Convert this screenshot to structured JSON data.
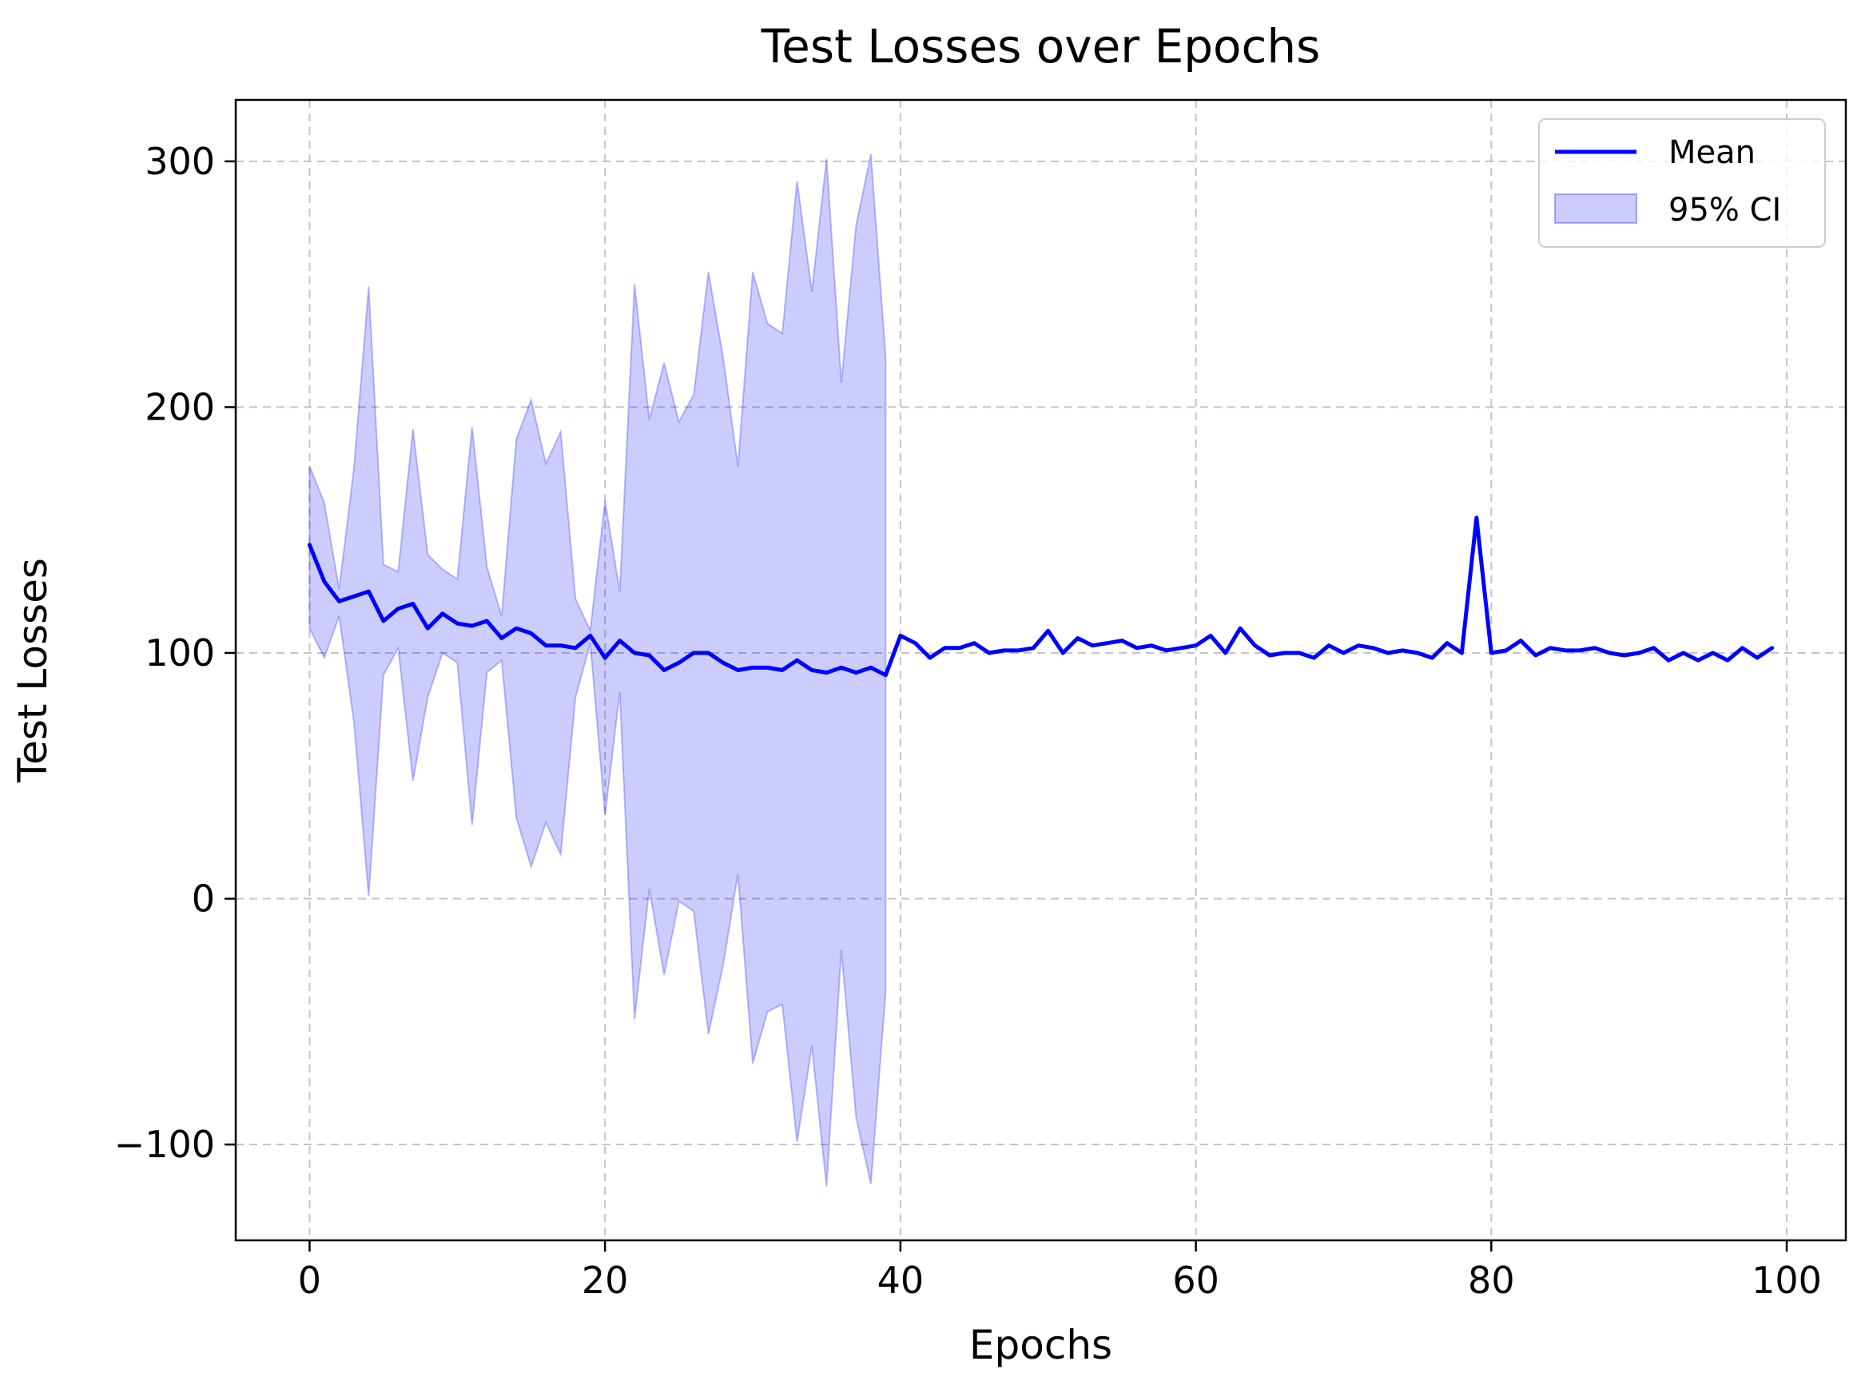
{
  "chart_data": {
    "type": "line",
    "title": "Test Losses over Epochs",
    "xlabel": "Epochs",
    "ylabel": "Test Losses",
    "xlim": [
      -5,
      104
    ],
    "ylim": [
      -139,
      325
    ],
    "xticks": [
      0,
      20,
      40,
      60,
      80,
      100
    ],
    "yticks": [
      -100,
      0,
      100,
      200,
      300
    ],
    "xtick_labels": [
      "0",
      "20",
      "40",
      "60",
      "80",
      "100"
    ],
    "ytick_labels": [
      "−100",
      "0",
      "100",
      "200",
      "300"
    ],
    "grid": true,
    "legend_position": "top-right",
    "series": [
      {
        "name": "Mean",
        "color": "#0000ff",
        "x": [
          0,
          1,
          2,
          3,
          4,
          5,
          6,
          7,
          8,
          9,
          10,
          11,
          12,
          13,
          14,
          15,
          16,
          17,
          18,
          19,
          20,
          21,
          22,
          23,
          24,
          25,
          26,
          27,
          28,
          29,
          30,
          31,
          32,
          33,
          34,
          35,
          36,
          37,
          38,
          39,
          40,
          41,
          42,
          43,
          44,
          45,
          46,
          47,
          48,
          49,
          50,
          51,
          52,
          53,
          54,
          55,
          56,
          57,
          58,
          59,
          60,
          61,
          62,
          63,
          64,
          65,
          66,
          67,
          68,
          69,
          70,
          71,
          72,
          73,
          74,
          75,
          76,
          77,
          78,
          79,
          80,
          81,
          82,
          83,
          84,
          85,
          86,
          87,
          88,
          89,
          90,
          91,
          92,
          93,
          94,
          95,
          96,
          97,
          98,
          99
        ],
        "values": [
          144,
          129,
          121,
          123,
          125,
          113,
          118,
          120,
          110,
          116,
          112,
          111,
          113,
          106,
          110,
          108,
          103,
          103,
          102,
          107,
          98,
          105,
          100,
          99,
          93,
          96,
          100,
          100,
          96,
          93,
          94,
          94,
          93,
          97,
          93,
          92,
          94,
          92,
          94,
          91,
          107,
          104,
          98,
          102,
          102,
          104,
          100,
          101,
          101,
          102,
          109,
          100,
          106,
          103,
          104,
          105,
          102,
          103,
          101,
          102,
          103,
          107,
          100,
          110,
          103,
          99,
          100,
          100,
          98,
          103,
          100,
          103,
          102,
          100,
          101,
          100,
          98,
          104,
          100,
          155,
          100,
          101,
          105,
          99,
          102,
          101,
          101,
          102,
          100,
          99,
          100,
          102,
          97,
          100,
          97,
          100,
          97,
          102,
          98,
          102
        ]
      },
      {
        "name": "95% CI",
        "color": "#0000ff",
        "fill_opacity": 0.2,
        "x": [
          0,
          1,
          2,
          3,
          4,
          5,
          6,
          7,
          8,
          9,
          10,
          11,
          12,
          13,
          14,
          15,
          16,
          17,
          18,
          19,
          20,
          21,
          22,
          23,
          24,
          25,
          26,
          27,
          28,
          29,
          30,
          31,
          32,
          33,
          34,
          35,
          36,
          37,
          38,
          39
        ],
        "lower": [
          110,
          98,
          115,
          72,
          1,
          91,
          102,
          48,
          82,
          100,
          96,
          30,
          92,
          97,
          33,
          13,
          31,
          18,
          82,
          104,
          34,
          84,
          -49,
          4,
          -31,
          -1,
          -5,
          -55,
          -27,
          10,
          -67,
          -46,
          -43,
          -99,
          -60,
          -117,
          -21,
          -89,
          -116,
          -38
        ],
        "upper": [
          176,
          161,
          126,
          175,
          249,
          136,
          133,
          191,
          140,
          134,
          130,
          192,
          135,
          115,
          187,
          203,
          177,
          190,
          122,
          109,
          162,
          125,
          250,
          195,
          218,
          194,
          205,
          255,
          220,
          176,
          255,
          234,
          230,
          292,
          247,
          301,
          210,
          274,
          303,
          220
        ]
      }
    ]
  }
}
